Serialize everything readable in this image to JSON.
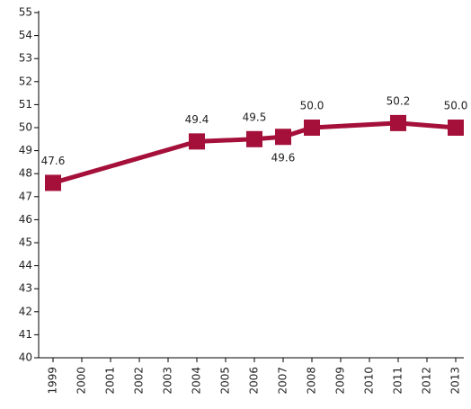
{
  "chart_data": {
    "type": "line",
    "x": [
      1999,
      2004,
      2006,
      2007,
      2008,
      2011,
      2013
    ],
    "values": [
      47.6,
      49.4,
      49.5,
      49.6,
      50.0,
      50.2,
      50.0
    ],
    "value_labels": [
      "47.6",
      "49.4",
      "49.5",
      "49.6",
      "50.0",
      "50.2",
      "50.0"
    ],
    "color": "#a5103a",
    "xlim": [
      1998.5,
      2013.5
    ],
    "xticks": [
      1999,
      2000,
      2001,
      2002,
      2003,
      2004,
      2005,
      2006,
      2007,
      2008,
      2009,
      2010,
      2011,
      2012,
      2013
    ],
    "ylim": [
      40,
      55
    ],
    "yticks": [
      40,
      41,
      42,
      43,
      44,
      45,
      46,
      47,
      48,
      49,
      50,
      51,
      52,
      53,
      54,
      55
    ]
  }
}
